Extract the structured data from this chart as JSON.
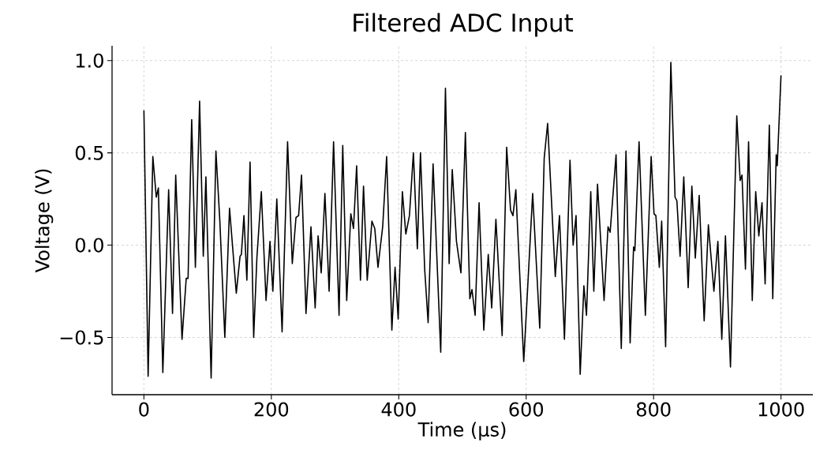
{
  "chart_data": {
    "type": "line",
    "title": "Filtered ADC Input",
    "xlabel": "Time (µs)",
    "ylabel": "Voltage (V)",
    "color": "#000000",
    "line_style": "solid",
    "grid": true,
    "xlim": [
      -50,
      1050
    ],
    "ylim": [
      -0.81,
      1.08
    ],
    "xticks": [
      0,
      200,
      400,
      600,
      800,
      1000
    ],
    "yticks": [
      {
        "value": -0.5,
        "label": "−0.5"
      },
      {
        "value": 0.0,
        "label": "0.0"
      },
      {
        "value": 0.5,
        "label": "0.5"
      },
      {
        "value": 1.0,
        "label": "1.0"
      }
    ],
    "x": [
      0,
      6.6,
      14,
      19.4,
      22.7,
      29.7,
      38.8,
      44.9,
      49.9,
      59.8,
      66.4,
      69.3,
      75,
      80.8,
      87.4,
      93.2,
      97.3,
      105.5,
      113,
      119.2,
      127,
      134.4,
      145,
      150.9,
      153,
      157,
      161.6,
      166.6,
      172.3,
      177.3,
      184.3,
      191.7,
      197.9,
      202.4,
      208.6,
      216.9,
      225.5,
      232.9,
      238.7,
      242.8,
      247.4,
      254.4,
      262.2,
      268.8,
      273.4,
      278.3,
      284.1,
      290.7,
      297.7,
      306.3,
      312.1,
      318.3,
      324.8,
      329,
      333.9,
      339.9,
      344.7,
      350.5,
      357.9,
      362.4,
      367.4,
      374.8,
      381,
      389.2,
      394.2,
      399.1,
      405.7,
      411.1,
      416.8,
      423,
      429.2,
      434.1,
      440.7,
      446.1,
      453.9,
      465.9,
      473.3,
      479.1,
      484,
      490.6,
      497.6,
      504.6,
      511.6,
      514.9,
      519.9,
      526.1,
      533.5,
      540.5,
      545.9,
      552.5,
      562.3,
      569.4,
      575.5,
      579.3,
      583.8,
      596.2,
      610.2,
      621.3,
      628.3,
      633.7,
      645.7,
      652.3,
      660.1,
      668.8,
      673.7,
      678.3,
      684.8,
      690.6,
      694.7,
      701.4,
      706.2,
      712,
      722.3,
      728.5,
      731.8,
      741.1,
      749.3,
      756.7,
      763.2,
      768.6,
      770.6,
      777.2,
      787.1,
      796.2,
      800.7,
      803.6,
      809,
      812.7,
      818.9,
      827.1,
      833.7,
      836.6,
      841.6,
      847.4,
      854.3,
      860.1,
      865.5,
      871.6,
      879.4,
      886,
      894.7,
      900.9,
      907.1,
      912.8,
      920.7,
      930.6,
      935.9,
      938.8,
      944.2,
      949.1,
      954.9,
      960.3,
      965.2,
      970.2,
      975.1,
      981.7,
      987.1,
      992.5,
      994.1,
      1000
    ],
    "values": [
      0.73,
      -0.71,
      0.48,
      0.26,
      0.31,
      -0.69,
      0.3,
      -0.37,
      0.38,
      -0.51,
      -0.18,
      -0.18,
      0.68,
      -0.12,
      0.78,
      -0.06,
      0.37,
      -0.72,
      0.51,
      0.13,
      -0.5,
      0.2,
      -0.26,
      -0.06,
      -0.05,
      0.16,
      -0.19,
      0.45,
      -0.5,
      -0.07,
      0.29,
      -0.3,
      0.02,
      -0.25,
      0.25,
      -0.47,
      0.56,
      -0.1,
      0.15,
      0.16,
      0.38,
      -0.37,
      0.1,
      -0.34,
      0.05,
      -0.15,
      0.28,
      -0.25,
      0.56,
      -0.38,
      0.54,
      -0.3,
      0.17,
      0.09,
      0.43,
      -0.19,
      0.32,
      -0.19,
      0.13,
      0.09,
      -0.12,
      0.1,
      0.48,
      -0.46,
      -0.12,
      -0.4,
      0.29,
      0.06,
      0.16,
      0.5,
      -0.02,
      0.5,
      -0.13,
      -0.42,
      0.44,
      -0.58,
      0.85,
      -0.1,
      0.41,
      0.02,
      -0.15,
      0.61,
      -0.29,
      -0.24,
      -0.38,
      0.23,
      -0.46,
      -0.05,
      -0.34,
      0.14,
      -0.49,
      0.53,
      0.19,
      0.16,
      0.3,
      -0.63,
      0.28,
      -0.45,
      0.47,
      0.66,
      -0.17,
      0.16,
      -0.51,
      0.46,
      0.0,
      0.16,
      -0.7,
      -0.22,
      -0.38,
      0.29,
      -0.25,
      0.33,
      -0.3,
      0.1,
      0.07,
      0.49,
      -0.56,
      0.51,
      -0.53,
      -0.01,
      -0.03,
      0.56,
      -0.38,
      0.48,
      0.17,
      0.16,
      -0.12,
      0.13,
      -0.55,
      0.99,
      0.26,
      0.24,
      -0.06,
      0.37,
      -0.23,
      0.32,
      -0.07,
      0.27,
      -0.41,
      0.11,
      -0.25,
      0.02,
      -0.51,
      0.05,
      -0.66,
      0.7,
      0.35,
      0.38,
      -0.13,
      0.56,
      -0.3,
      0.29,
      0.05,
      0.23,
      -0.21,
      0.65,
      -0.29,
      0.49,
      0.43,
      0.92
    ]
  }
}
